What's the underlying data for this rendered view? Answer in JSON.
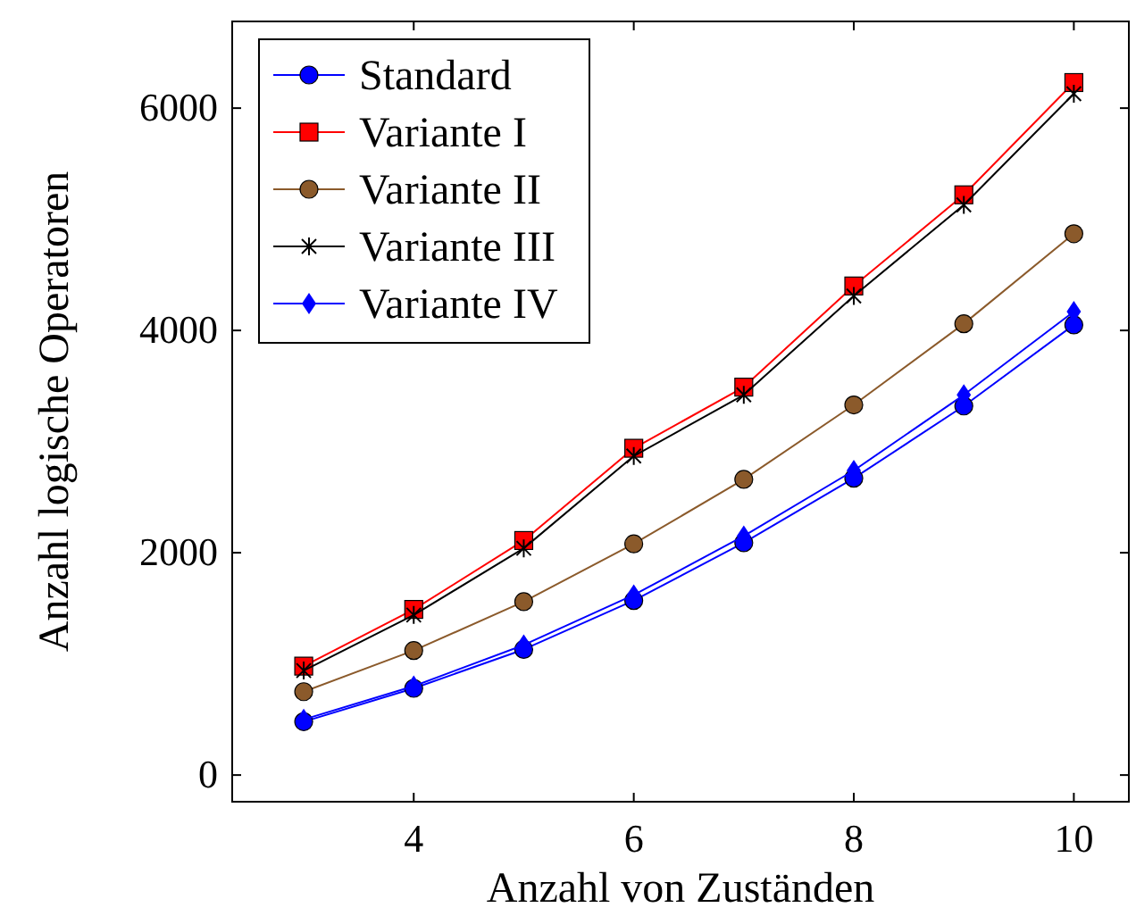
{
  "chart_data": {
    "type": "line",
    "xlabel": "Anzahl von Zuständen",
    "ylabel": "Anzahl logische Operatoren",
    "x": [
      3,
      4,
      5,
      6,
      7,
      8,
      9,
      10
    ],
    "xlim": [
      2.35,
      10.5
    ],
    "xticks": [
      4,
      6,
      8,
      10
    ],
    "ylim": [
      -240,
      6780
    ],
    "yticks": [
      0,
      2000,
      4000,
      6000
    ],
    "grid": false,
    "legend": "top left",
    "series": [
      {
        "name": "Standard",
        "color": "#0000ff",
        "marker": "circle",
        "values": [
          480,
          780,
          1130,
          1570,
          2090,
          2670,
          3320,
          4050
        ]
      },
      {
        "name": "Variante I",
        "color": "#ff0000",
        "marker": "square",
        "values": [
          980,
          1490,
          2110,
          2940,
          3490,
          4400,
          5220,
          6230
        ]
      },
      {
        "name": "Variante II",
        "color": "#8b5a2b",
        "marker": "circle",
        "values": [
          750,
          1120,
          1560,
          2080,
          2660,
          3330,
          4060,
          4870
        ]
      },
      {
        "name": "Variante III",
        "color": "#000000",
        "marker": "cross",
        "values": [
          940,
          1440,
          2040,
          2870,
          3420,
          4310,
          5130,
          6130
        ]
      },
      {
        "name": "Variante IV",
        "color": "#0000ff",
        "marker": "diamond",
        "values": [
          500,
          800,
          1170,
          1620,
          2150,
          2740,
          3420,
          4170
        ]
      }
    ]
  }
}
